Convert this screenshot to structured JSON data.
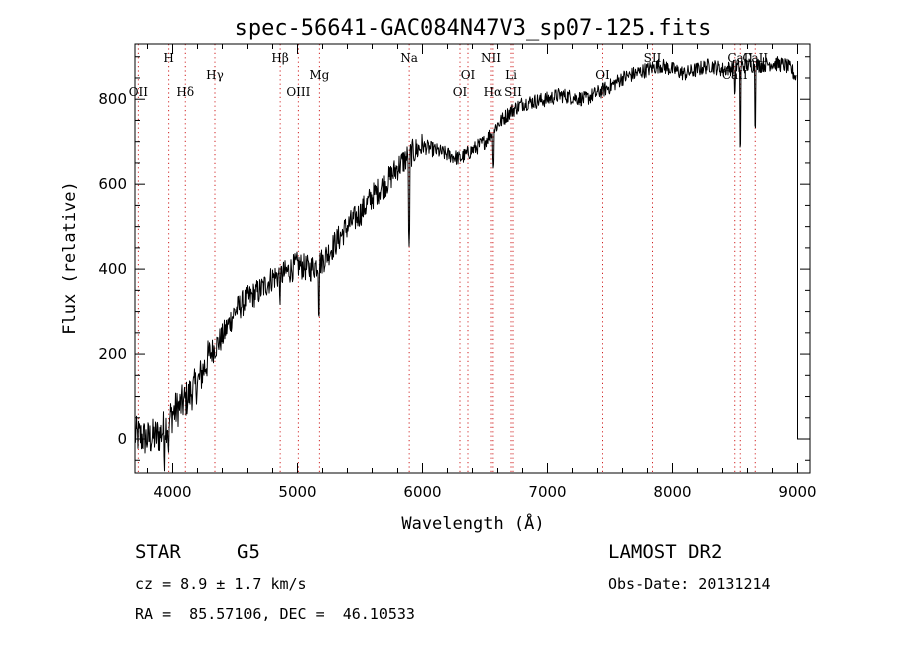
{
  "chart_data": {
    "type": "line",
    "title": "spec-56641-GAC084N47V3_sp07-125.fits",
    "xlabel": "Wavelength (Å)",
    "ylabel": "Flux (relative)",
    "xlim": [
      3700,
      9100
    ],
    "ylim": [
      -80,
      930
    ],
    "xticks": [
      4000,
      5000,
      6000,
      7000,
      8000,
      9000
    ],
    "yticks": [
      0,
      200,
      400,
      600,
      800
    ],
    "grid": false,
    "spectrum_anchors": {
      "x": [
        3700,
        3800,
        3900,
        4000,
        4100,
        4200,
        4300,
        4400,
        4500,
        4600,
        4700,
        4800,
        4900,
        5000,
        5100,
        5200,
        5300,
        5400,
        5500,
        5600,
        5700,
        5800,
        5900,
        6000,
        6100,
        6200,
        6300,
        6400,
        6500,
        6600,
        6700,
        6800,
        6900,
        7000,
        7100,
        7200,
        7300,
        7400,
        7500,
        7600,
        7700,
        7800,
        7900,
        8000,
        8100,
        8200,
        8300,
        8400,
        8500,
        8600,
        8700,
        8800,
        8900,
        8950,
        8990
      ],
      "y": [
        10,
        0,
        10,
        60,
        90,
        130,
        200,
        240,
        300,
        330,
        350,
        380,
        390,
        410,
        400,
        420,
        460,
        500,
        530,
        570,
        600,
        640,
        670,
        690,
        680,
        670,
        660,
        680,
        700,
        740,
        770,
        790,
        795,
        800,
        810,
        805,
        800,
        815,
        830,
        850,
        860,
        870,
        880,
        870,
        860,
        870,
        880,
        870,
        875,
        880,
        880,
        885,
        880,
        870,
        850
      ]
    },
    "absorption_features": [
      {
        "x": 5893,
        "depth": 200
      },
      {
        "x": 5170,
        "depth": 100
      },
      {
        "x": 8542,
        "depth": 190
      },
      {
        "x": 8662,
        "depth": 130
      },
      {
        "x": 8498,
        "depth": 60
      },
      {
        "x": 6563,
        "depth": 70
      },
      {
        "x": 3934,
        "depth": 60
      },
      {
        "x": 3969,
        "depth": 50
      },
      {
        "x": 4861,
        "depth": 40
      }
    ],
    "end_drop": {
      "x": 9000,
      "y": 0
    },
    "line_markers": [
      {
        "label": "OII",
        "x": 3727,
        "row": 3
      },
      {
        "label": "H",
        "x": 3969,
        "row": 1
      },
      {
        "label": "Hδ",
        "x": 4102,
        "row": 3
      },
      {
        "label": "Hγ",
        "x": 4340,
        "row": 2
      },
      {
        "label": "Hβ",
        "x": 4861,
        "row": 1
      },
      {
        "label": "OIII",
        "x": 5007,
        "row": 3
      },
      {
        "label": "Mg",
        "x": 5175,
        "row": 2
      },
      {
        "label": "Na",
        "x": 5893,
        "row": 1
      },
      {
        "label": "OI",
        "x": 6300,
        "row": 3
      },
      {
        "label": "OI",
        "x": 6364,
        "row": 2
      },
      {
        "label": "NII",
        "x": 6548,
        "row": 1
      },
      {
        "label": "Hα",
        "x": 6563,
        "row": 3
      },
      {
        "label": "Li",
        "x": 6708,
        "row": 2
      },
      {
        "label": "SII",
        "x": 6724,
        "row": 3
      },
      {
        "label": "OI",
        "x": 7440,
        "row": 2
      },
      {
        "label": "SII",
        "x": 7840,
        "row": 1
      },
      {
        "label": "CaII",
        "x": 8498,
        "row": 2
      },
      {
        "label": "CaII",
        "x": 8542,
        "row": 1
      },
      {
        "label": "CaII",
        "x": 8662,
        "row": 1
      }
    ]
  },
  "info": {
    "object_class": "STAR",
    "subclass": "G5",
    "cz": "cz = 8.9 ± 1.7 km/s",
    "coords": "RA =  85.57106, DEC =  46.10533",
    "survey": "LAMOST DR2",
    "obs_date": "Obs-Date: 20131214"
  }
}
